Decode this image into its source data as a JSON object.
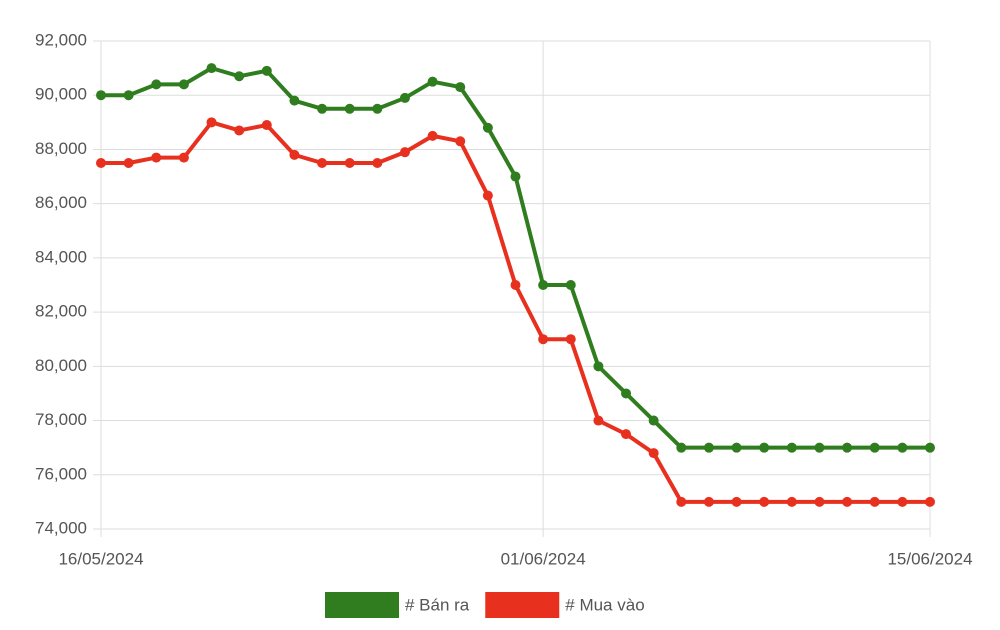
{
  "chart_data": {
    "type": "line",
    "categories": [
      "16/05/2024",
      null,
      null,
      null,
      null,
      null,
      null,
      null,
      null,
      null,
      null,
      null,
      null,
      null,
      null,
      null,
      "01/06/2024",
      null,
      null,
      null,
      null,
      null,
      null,
      null,
      null,
      null,
      null,
      null,
      null,
      null,
      "15/06/2024"
    ],
    "series": [
      {
        "name": "# Bán ra",
        "color": "#2f7d1f",
        "values": [
          90000,
          90000,
          90400,
          90400,
          91000,
          90700,
          90900,
          89800,
          89500,
          89500,
          89500,
          89900,
          90500,
          90300,
          88800,
          87000,
          83000,
          83000,
          80000,
          79000,
          78000,
          77000,
          77000,
          77000,
          77000,
          77000,
          77000,
          77000,
          77000,
          77000,
          77000
        ]
      },
      {
        "name": "# Mua vào",
        "color": "#e8301f",
        "values": [
          87500,
          87500,
          87700,
          87700,
          89000,
          88700,
          88900,
          87800,
          87500,
          87500,
          87500,
          87900,
          88500,
          88300,
          86300,
          83000,
          81000,
          81000,
          78000,
          77500,
          76800,
          75000,
          75000,
          75000,
          75000,
          75000,
          75000,
          75000,
          75000,
          75000,
          75000
        ]
      }
    ],
    "ylim": [
      74000,
      92000
    ],
    "yticks": [
      {
        "value": 74000,
        "label": "74,000"
      },
      {
        "value": 76000,
        "label": "76,000"
      },
      {
        "value": 78000,
        "label": "78,000"
      },
      {
        "value": 80000,
        "label": "80,000"
      },
      {
        "value": 82000,
        "label": "82,000"
      },
      {
        "value": 84000,
        "label": "84,000"
      },
      {
        "value": 86000,
        "label": "86,000"
      },
      {
        "value": 88000,
        "label": "88,000"
      },
      {
        "value": 90000,
        "label": "90,000"
      },
      {
        "value": 92000,
        "label": "92,000"
      }
    ],
    "grid": true,
    "legend": "bottom"
  }
}
